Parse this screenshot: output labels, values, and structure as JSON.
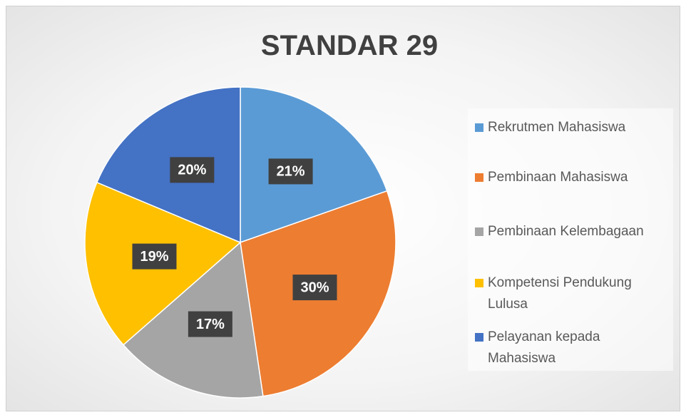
{
  "chart_data": {
    "type": "pie",
    "title": "STANDAR 29",
    "categories": [
      "Rekrutmen Mahasiswa",
      "Pembinaan Mahasiswa",
      "Pembinaan Kelembagaan",
      "Kompetensi Pendukung Lulusa",
      "Pelayanan kepada Mahasiswa"
    ],
    "values": [
      21,
      30,
      17,
      19,
      20
    ],
    "value_labels": [
      "21%",
      "30%",
      "17%",
      "19%",
      "20%"
    ],
    "colors": [
      "#5b9bd5",
      "#ed7d31",
      "#a5a5a5",
      "#ffc000",
      "#4472c4"
    ],
    "legend": "right"
  }
}
